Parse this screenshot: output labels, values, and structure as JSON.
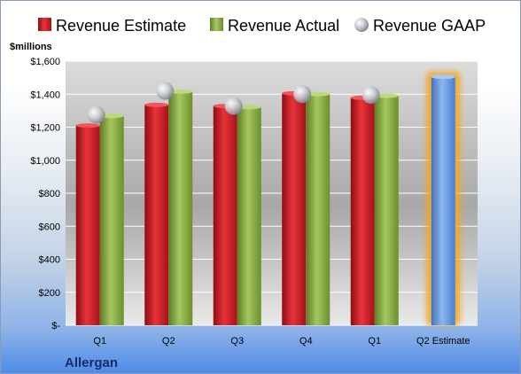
{
  "chart_data": {
    "type": "bar",
    "unit_label": "$millions",
    "company": "Allergan",
    "categories": [
      "Q1",
      "Q2",
      "Q3",
      "Q4",
      "Q1",
      "Q2 Estimate"
    ],
    "ylim": [
      0,
      1600
    ],
    "yticks": [
      {
        "value": 0,
        "label": "$-"
      },
      {
        "value": 200,
        "label": "$200"
      },
      {
        "value": 400,
        "label": "$400"
      },
      {
        "value": 600,
        "label": "$600"
      },
      {
        "value": 800,
        "label": "$800"
      },
      {
        "value": 1000,
        "label": "$1,000"
      },
      {
        "value": 1200,
        "label": "$1,200"
      },
      {
        "value": 1400,
        "label": "$1,400"
      },
      {
        "value": 1600,
        "label": "$1,600"
      }
    ],
    "grid": true,
    "legend_position": "top",
    "series": [
      {
        "name": "Revenue Estimate",
        "kind": "bar",
        "color": "#c8161d",
        "values": [
          1210,
          1335,
          1328,
          1405,
          1378,
          null
        ]
      },
      {
        "name": "Revenue Actual",
        "kind": "bar",
        "color": "#7ea33c",
        "values": [
          1268,
          1415,
          1322,
          1400,
          1390,
          null
        ]
      },
      {
        "name": "Revenue GAAP",
        "kind": "marker",
        "color": "#b8bcc4",
        "values": [
          1275,
          1420,
          1328,
          1400,
          1395,
          null
        ]
      },
      {
        "name": "Q2 Estimate",
        "kind": "highlight-bar",
        "color": "#5b8fd6",
        "glow": "#f5a623",
        "values": [
          null,
          null,
          null,
          null,
          null,
          1505
        ]
      }
    ]
  }
}
